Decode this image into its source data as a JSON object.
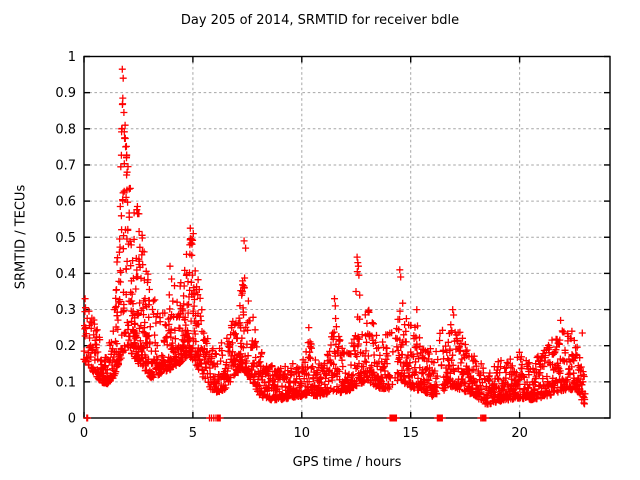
{
  "window": {
    "background": "#ffffff"
  },
  "chart_data": {
    "type": "scatter",
    "title": "Day 205 of 2014, SRMTID for receiver bdle",
    "xlabel": "GPS time / hours",
    "ylabel": "SRMTID / TECUs",
    "series_name": "SRMTID",
    "legend": "none",
    "grid": true,
    "xlim": [
      0,
      24.15
    ],
    "ylim": [
      0,
      1
    ],
    "xticks": [
      0,
      5,
      10,
      15,
      20
    ],
    "yticks": [
      0,
      0.1,
      0.2,
      0.3,
      0.4,
      0.5,
      0.6,
      0.7,
      0.8,
      0.9,
      1
    ],
    "marker": {
      "shape": "plus",
      "size": 7,
      "color": "#ff0000"
    },
    "colors": {
      "border": "#000000",
      "grid": "#a6a6a6",
      "text": "#000000",
      "background": "#ffffff"
    },
    "sampling": {
      "t_start": 0,
      "t_end": 23,
      "per_hour": 96,
      "seed": 20514,
      "skew": 1.9,
      "dense_threshold": 0.25,
      "dense_prob": 0.6
    },
    "envelope": [
      [
        0,
        0.16,
        0.33
      ],
      [
        0.3,
        0.14,
        0.3
      ],
      [
        0.6,
        0.11,
        0.25
      ],
      [
        1,
        0.09,
        0.17
      ],
      [
        1.35,
        0.11,
        0.25
      ],
      [
        1.6,
        0.15,
        0.55
      ],
      [
        1.8,
        0.18,
        0.95
      ],
      [
        2,
        0.2,
        0.72
      ],
      [
        2.25,
        0.17,
        0.6
      ],
      [
        2.5,
        0.15,
        0.57
      ],
      [
        2.8,
        0.13,
        0.46
      ],
      [
        3.1,
        0.11,
        0.34
      ],
      [
        3.45,
        0.12,
        0.33
      ],
      [
        3.75,
        0.13,
        0.3
      ],
      [
        3.95,
        0.13,
        0.4
      ],
      [
        4.2,
        0.14,
        0.36
      ],
      [
        4.55,
        0.16,
        0.45
      ],
      [
        4.85,
        0.17,
        0.52
      ],
      [
        5.15,
        0.15,
        0.47
      ],
      [
        5.45,
        0.11,
        0.28
      ],
      [
        5.8,
        0.08,
        0.2
      ],
      [
        6.1,
        0.07,
        0.2
      ],
      [
        6.5,
        0.08,
        0.25
      ],
      [
        6.9,
        0.11,
        0.3
      ],
      [
        7.25,
        0.14,
        0.42
      ],
      [
        7.5,
        0.12,
        0.36
      ],
      [
        7.8,
        0.09,
        0.28
      ],
      [
        8.1,
        0.06,
        0.2
      ],
      [
        8.5,
        0.05,
        0.15
      ],
      [
        9,
        0.05,
        0.14
      ],
      [
        9.5,
        0.055,
        0.15
      ],
      [
        10,
        0.06,
        0.17
      ],
      [
        10.3,
        0.065,
        0.23
      ],
      [
        10.7,
        0.06,
        0.16
      ],
      [
        11.1,
        0.065,
        0.18
      ],
      [
        11.5,
        0.075,
        0.3
      ],
      [
        11.8,
        0.07,
        0.2
      ],
      [
        12.2,
        0.075,
        0.2
      ],
      [
        12.55,
        0.09,
        0.3
      ],
      [
        12.9,
        0.1,
        0.32
      ],
      [
        13.2,
        0.095,
        0.29
      ],
      [
        13.6,
        0.08,
        0.22
      ],
      [
        14,
        0.08,
        0.24
      ],
      [
        14.5,
        0.11,
        0.36
      ],
      [
        14.8,
        0.09,
        0.28
      ],
      [
        15.2,
        0.08,
        0.28
      ],
      [
        15.6,
        0.07,
        0.21
      ],
      [
        16,
        0.06,
        0.19
      ],
      [
        16.5,
        0.075,
        0.26
      ],
      [
        17,
        0.085,
        0.27
      ],
      [
        17.4,
        0.075,
        0.22
      ],
      [
        18,
        0.06,
        0.18
      ],
      [
        18.4,
        0.035,
        0.13
      ],
      [
        19,
        0.045,
        0.16
      ],
      [
        19.5,
        0.05,
        0.18
      ],
      [
        20,
        0.055,
        0.19
      ],
      [
        20.5,
        0.05,
        0.16
      ],
      [
        21,
        0.055,
        0.18
      ],
      [
        21.5,
        0.065,
        0.22
      ],
      [
        21.9,
        0.075,
        0.25
      ],
      [
        22.3,
        0.075,
        0.23
      ],
      [
        22.6,
        0.08,
        0.21
      ],
      [
        22.85,
        0.05,
        0.15
      ],
      [
        23,
        0.03,
        0.11
      ]
    ],
    "zero_runs": [
      [
        0.12,
        0.18,
        0.5
      ],
      [
        5.55,
        6.3,
        0.12
      ],
      [
        14.05,
        14.35,
        0.85
      ],
      [
        16.2,
        16.45,
        0.85
      ],
      [
        18.2,
        18.45,
        0.4
      ]
    ],
    "outliers": [
      [
        0.05,
        0.33
      ],
      [
        0.07,
        0.305
      ],
      [
        1.76,
        0.965
      ],
      [
        1.8,
        0.94
      ],
      [
        1.78,
        0.885
      ],
      [
        1.83,
        0.845
      ],
      [
        1.73,
        0.8
      ],
      [
        1.87,
        0.775
      ],
      [
        1.91,
        0.75
      ],
      [
        1.95,
        0.72
      ],
      [
        1.69,
        0.695
      ],
      [
        1.98,
        0.68
      ],
      [
        2.45,
        0.585
      ],
      [
        2.52,
        0.565
      ],
      [
        3.95,
        0.42
      ],
      [
        4.88,
        0.525
      ],
      [
        5.02,
        0.51
      ],
      [
        4.95,
        0.495
      ],
      [
        7.35,
        0.49
      ],
      [
        7.42,
        0.47
      ],
      [
        10.32,
        0.25
      ],
      [
        11.5,
        0.33
      ],
      [
        11.54,
        0.31
      ],
      [
        12.54,
        0.445
      ],
      [
        12.57,
        0.43
      ],
      [
        12.6,
        0.42
      ],
      [
        12.55,
        0.405
      ],
      [
        12.62,
        0.395
      ],
      [
        12.49,
        0.35
      ],
      [
        12.66,
        0.34
      ],
      [
        14.5,
        0.41
      ],
      [
        14.54,
        0.39
      ],
      [
        15.28,
        0.3
      ],
      [
        16.93,
        0.3
      ],
      [
        16.97,
        0.285
      ],
      [
        21.88,
        0.27
      ],
      [
        22.4,
        0.24
      ],
      [
        22.88,
        0.235
      ]
    ]
  }
}
